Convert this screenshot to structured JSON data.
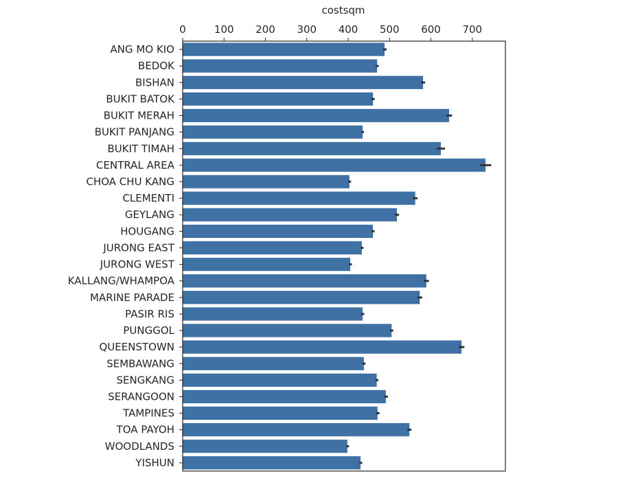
{
  "chart_data": {
    "type": "bar",
    "orientation": "horizontal",
    "xlabel": "costsqm",
    "xlabel_position": "top",
    "xlim": [
      0,
      780
    ],
    "xticks": [
      0,
      100,
      200,
      300,
      400,
      500,
      600,
      700
    ],
    "grid": false,
    "bar_color": "#4071a4",
    "errorbar_color": "#333333",
    "categories": [
      "ANG MO KIO",
      "BEDOK",
      "BISHAN",
      "BUKIT BATOK",
      "BUKIT MERAH",
      "BUKIT PANJANG",
      "BUKIT TIMAH",
      "CENTRAL AREA",
      "CHOA CHU KANG",
      "CLEMENTI",
      "GEYLANG",
      "HOUGANG",
      "JURONG EAST",
      "JURONG WEST",
      "KALLANG/WHAMPOA",
      "MARINE PARADE",
      "PASIR RIS",
      "PUNGGOL",
      "QUEENSTOWN",
      "SEMBAWANG",
      "SENGKANG",
      "SERANGOON",
      "TAMPINES",
      "TOA PAYOH",
      "WOODLANDS",
      "YISHUN"
    ],
    "values": [
      488,
      470,
      581,
      460,
      644,
      435,
      624,
      732,
      403,
      562,
      518,
      460,
      433,
      405,
      589,
      573,
      435,
      505,
      674,
      438,
      469,
      491,
      471,
      548,
      398,
      430
    ],
    "error_low": [
      484,
      466,
      576,
      456,
      637,
      432,
      614,
      718,
      400,
      556,
      513,
      456,
      430,
      402,
      583,
      567,
      431,
      501,
      667,
      434,
      466,
      487,
      467,
      543,
      395,
      427
    ],
    "error_high": [
      493,
      474,
      586,
      464,
      651,
      438,
      634,
      746,
      407,
      568,
      523,
      464,
      437,
      409,
      595,
      579,
      439,
      509,
      681,
      442,
      473,
      496,
      476,
      553,
      402,
      434
    ]
  }
}
